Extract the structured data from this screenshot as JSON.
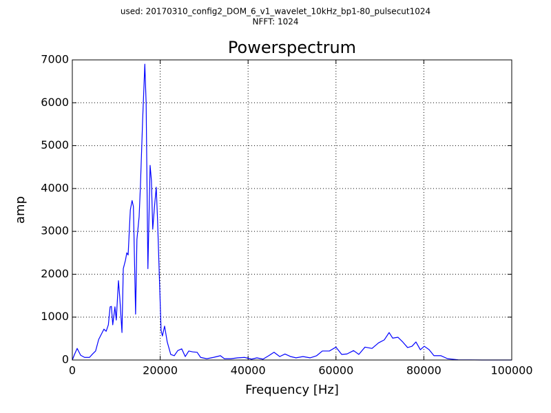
{
  "chart_data": {
    "type": "line",
    "suptitle": [
      "used: 20170310_config2_DOM_6_v1_wavelet_10kHz_bp1-80_pulsecut1024",
      "NFFT: 1024"
    ],
    "title": "Powerspectrum",
    "xlabel": "Frequency [Hz]",
    "ylabel": "amp",
    "color": "#0000ff",
    "grid": true,
    "xlim": [
      0,
      100000
    ],
    "ylim": [
      0,
      7000
    ],
    "xticks": [
      0,
      20000,
      40000,
      60000,
      80000,
      100000
    ],
    "yticks": [
      0,
      1000,
      2000,
      3000,
      4000,
      5000,
      6000,
      7000
    ],
    "x": [
      0,
      500,
      1100,
      1900,
      2800,
      3900,
      4700,
      5300,
      6000,
      6600,
      7200,
      7700,
      8200,
      8600,
      8900,
      9200,
      9700,
      10000,
      10500,
      10800,
      11300,
      11600,
      12100,
      12400,
      12700,
      13200,
      13600,
      13900,
      14400,
      14700,
      15200,
      15500,
      16000,
      16500,
      16800,
      17200,
      17700,
      18000,
      18300,
      18700,
      19100,
      19400,
      19900,
      20200,
      20500,
      21000,
      21600,
      22400,
      23200,
      24000,
      24900,
      25700,
      26500,
      27400,
      28400,
      29200,
      30600,
      32100,
      33700,
      34600,
      36100,
      37600,
      39200,
      40800,
      42000,
      43400,
      44700,
      45900,
      47200,
      48400,
      49700,
      50900,
      52500,
      54100,
      55600,
      56900,
      58500,
      60000,
      61300,
      62500,
      64000,
      65200,
      66600,
      68200,
      69700,
      71000,
      72100,
      72900,
      74100,
      75200,
      76300,
      77300,
      78200,
      79200,
      80100,
      81200,
      82300,
      83900,
      85400,
      87800,
      93300,
      100000
    ],
    "values": [
      0,
      130,
      270,
      110,
      60,
      60,
      150,
      210,
      480,
      600,
      720,
      670,
      820,
      1240,
      1250,
      820,
      1240,
      930,
      1850,
      1460,
      640,
      2130,
      2330,
      2500,
      2450,
      3500,
      3720,
      3580,
      1070,
      2810,
      3340,
      4060,
      5590,
      6900,
      5990,
      2130,
      4540,
      4190,
      3050,
      3580,
      4030,
      3260,
      1650,
      690,
      560,
      790,
      420,
      130,
      100,
      220,
      260,
      80,
      210,
      190,
      180,
      60,
      30,
      60,
      100,
      30,
      30,
      50,
      60,
      20,
      50,
      20,
      100,
      180,
      80,
      140,
      80,
      50,
      80,
      50,
      100,
      210,
      210,
      300,
      130,
      140,
      220,
      130,
      300,
      270,
      400,
      470,
      640,
      510,
      530,
      420,
      290,
      320,
      420,
      240,
      320,
      240,
      100,
      100,
      30,
      5,
      0,
      0
    ]
  }
}
